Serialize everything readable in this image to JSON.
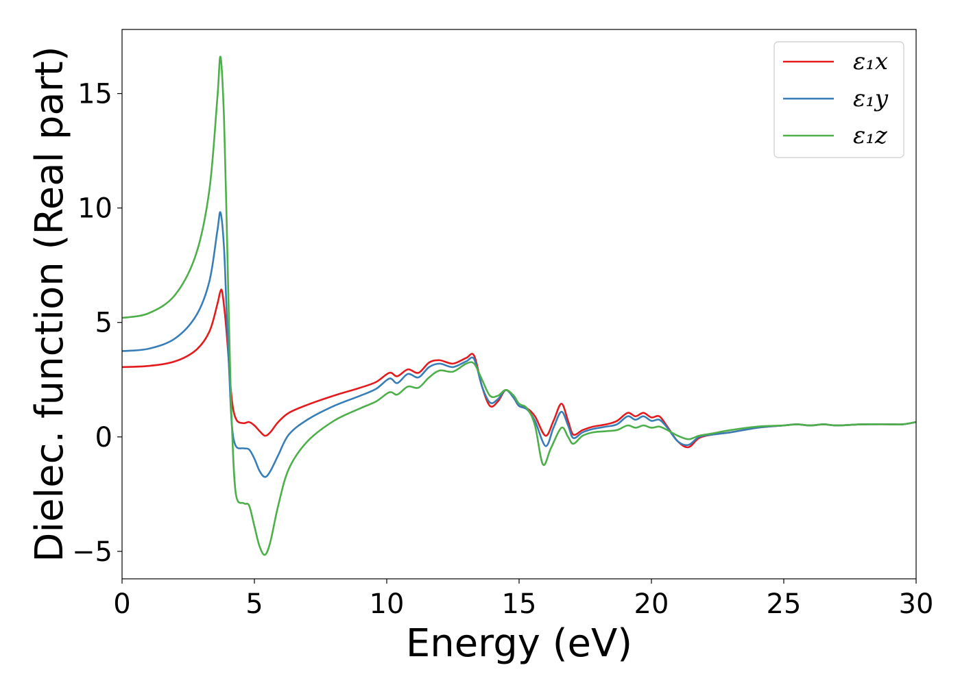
{
  "chart_data": {
    "type": "line",
    "title": "",
    "xlabel": "Energy (eV)",
    "ylabel": "Dielec. function (Real part)",
    "xlim": [
      0,
      30
    ],
    "ylim": [
      -6.2,
      17.8
    ],
    "xticks": [
      0,
      5,
      10,
      15,
      20,
      25,
      30
    ],
    "xtick_labels": [
      "0",
      "5",
      "10",
      "15",
      "20",
      "25",
      "30"
    ],
    "yticks": [
      -5,
      0,
      5,
      10,
      15
    ],
    "ytick_labels": [
      "−5",
      "0",
      "5",
      "10",
      "15"
    ],
    "grid": false,
    "legend_position": "top-right",
    "series": [
      {
        "name": "ε₁x",
        "color": "#e41a1c",
        "points": [
          [
            0,
            3.05
          ],
          [
            1,
            3.1
          ],
          [
            2,
            3.3
          ],
          [
            2.8,
            3.8
          ],
          [
            3.3,
            4.6
          ],
          [
            3.6,
            5.8
          ],
          [
            3.7,
            6.3
          ],
          [
            3.78,
            6.35
          ],
          [
            3.9,
            5.2
          ],
          [
            4.0,
            3.8
          ],
          [
            4.1,
            2.2
          ],
          [
            4.2,
            1.2
          ],
          [
            4.35,
            0.7
          ],
          [
            4.6,
            0.6
          ],
          [
            4.8,
            0.65
          ],
          [
            5.0,
            0.5
          ],
          [
            5.2,
            0.25
          ],
          [
            5.4,
            0.05
          ],
          [
            5.6,
            0.2
          ],
          [
            5.9,
            0.65
          ],
          [
            6.3,
            1.05
          ],
          [
            7,
            1.4
          ],
          [
            8,
            1.8
          ],
          [
            9,
            2.15
          ],
          [
            9.6,
            2.4
          ],
          [
            10.1,
            2.8
          ],
          [
            10.4,
            2.65
          ],
          [
            10.8,
            2.95
          ],
          [
            11.2,
            2.8
          ],
          [
            11.6,
            3.25
          ],
          [
            12.0,
            3.35
          ],
          [
            12.5,
            3.2
          ],
          [
            13.0,
            3.45
          ],
          [
            13.3,
            3.55
          ],
          [
            13.6,
            2.2
          ],
          [
            13.9,
            1.35
          ],
          [
            14.2,
            1.55
          ],
          [
            14.5,
            2.05
          ],
          [
            14.8,
            1.7
          ],
          [
            15.0,
            1.35
          ],
          [
            15.3,
            1.25
          ],
          [
            15.6,
            0.9
          ],
          [
            16.0,
            0.05
          ],
          [
            16.3,
            0.7
          ],
          [
            16.6,
            1.45
          ],
          [
            16.85,
            0.7
          ],
          [
            17.05,
            0.1
          ],
          [
            17.4,
            0.3
          ],
          [
            17.8,
            0.45
          ],
          [
            18.3,
            0.55
          ],
          [
            18.7,
            0.7
          ],
          [
            19.1,
            1.05
          ],
          [
            19.4,
            0.9
          ],
          [
            19.7,
            1.05
          ],
          [
            20.0,
            0.85
          ],
          [
            20.3,
            0.9
          ],
          [
            20.6,
            0.45
          ],
          [
            21.0,
            -0.2
          ],
          [
            21.4,
            -0.45
          ],
          [
            21.8,
            -0.05
          ],
          [
            22.3,
            0.1
          ],
          [
            23,
            0.2
          ],
          [
            24,
            0.4
          ],
          [
            25,
            0.5
          ],
          [
            25.5,
            0.55
          ],
          [
            26,
            0.5
          ],
          [
            26.5,
            0.55
          ],
          [
            27,
            0.5
          ],
          [
            28,
            0.55
          ],
          [
            29,
            0.55
          ],
          [
            29.5,
            0.55
          ],
          [
            30,
            0.65
          ]
        ]
      },
      {
        "name": "ε₁y",
        "color": "#377eb8",
        "points": [
          [
            0,
            3.75
          ],
          [
            1,
            3.85
          ],
          [
            2,
            4.3
          ],
          [
            2.8,
            5.3
          ],
          [
            3.3,
            6.8
          ],
          [
            3.6,
            9.0
          ],
          [
            3.72,
            9.8
          ],
          [
            3.85,
            8.3
          ],
          [
            3.95,
            5.5
          ],
          [
            4.05,
            2.8
          ],
          [
            4.15,
            0.5
          ],
          [
            4.3,
            -0.4
          ],
          [
            4.6,
            -0.5
          ],
          [
            4.8,
            -0.55
          ],
          [
            5.0,
            -0.95
          ],
          [
            5.2,
            -1.5
          ],
          [
            5.4,
            -1.75
          ],
          [
            5.6,
            -1.5
          ],
          [
            5.9,
            -0.8
          ],
          [
            6.3,
            0.1
          ],
          [
            7,
            0.75
          ],
          [
            8,
            1.35
          ],
          [
            9,
            1.8
          ],
          [
            9.6,
            2.1
          ],
          [
            10.1,
            2.55
          ],
          [
            10.4,
            2.35
          ],
          [
            10.8,
            2.75
          ],
          [
            11.2,
            2.6
          ],
          [
            11.6,
            3.05
          ],
          [
            12.0,
            3.2
          ],
          [
            12.5,
            3.05
          ],
          [
            13.0,
            3.3
          ],
          [
            13.3,
            3.4
          ],
          [
            13.6,
            2.2
          ],
          [
            13.9,
            1.5
          ],
          [
            14.2,
            1.65
          ],
          [
            14.5,
            2.05
          ],
          [
            14.8,
            1.7
          ],
          [
            15.0,
            1.35
          ],
          [
            15.3,
            1.2
          ],
          [
            15.6,
            0.7
          ],
          [
            16.0,
            -0.4
          ],
          [
            16.3,
            0.4
          ],
          [
            16.6,
            1.1
          ],
          [
            16.85,
            0.5
          ],
          [
            17.05,
            -0.05
          ],
          [
            17.4,
            0.2
          ],
          [
            17.8,
            0.35
          ],
          [
            18.3,
            0.45
          ],
          [
            18.7,
            0.55
          ],
          [
            19.1,
            0.9
          ],
          [
            19.4,
            0.75
          ],
          [
            19.7,
            0.9
          ],
          [
            20.0,
            0.7
          ],
          [
            20.3,
            0.75
          ],
          [
            20.6,
            0.4
          ],
          [
            21.0,
            -0.2
          ],
          [
            21.4,
            -0.35
          ],
          [
            21.8,
            0
          ],
          [
            22.3,
            0.1
          ],
          [
            23,
            0.2
          ],
          [
            24,
            0.4
          ],
          [
            25,
            0.5
          ],
          [
            25.5,
            0.55
          ],
          [
            26,
            0.5
          ],
          [
            26.5,
            0.55
          ],
          [
            27,
            0.5
          ],
          [
            28,
            0.55
          ],
          [
            29,
            0.55
          ],
          [
            29.5,
            0.55
          ],
          [
            30,
            0.65
          ]
        ]
      },
      {
        "name": "ε₁z",
        "color": "#4daf4a",
        "points": [
          [
            0,
            5.2
          ],
          [
            1,
            5.4
          ],
          [
            2,
            6.2
          ],
          [
            2.8,
            8.0
          ],
          [
            3.3,
            10.8
          ],
          [
            3.6,
            14.8
          ],
          [
            3.72,
            16.6
          ],
          [
            3.85,
            14.0
          ],
          [
            3.95,
            9.5
          ],
          [
            4.05,
            4.5
          ],
          [
            4.15,
            0.5
          ],
          [
            4.3,
            -2.5
          ],
          [
            4.6,
            -2.9
          ],
          [
            4.8,
            -3.0
          ],
          [
            5.0,
            -3.9
          ],
          [
            5.2,
            -4.8
          ],
          [
            5.4,
            -5.15
          ],
          [
            5.6,
            -4.6
          ],
          [
            5.9,
            -3.0
          ],
          [
            6.3,
            -1.4
          ],
          [
            7,
            -0.2
          ],
          [
            8,
            0.7
          ],
          [
            9,
            1.25
          ],
          [
            9.6,
            1.55
          ],
          [
            10.1,
            1.95
          ],
          [
            10.4,
            1.85
          ],
          [
            10.8,
            2.2
          ],
          [
            11.2,
            2.15
          ],
          [
            11.6,
            2.6
          ],
          [
            12.0,
            2.9
          ],
          [
            12.5,
            2.85
          ],
          [
            13.0,
            3.2
          ],
          [
            13.3,
            3.2
          ],
          [
            13.6,
            2.5
          ],
          [
            13.9,
            1.8
          ],
          [
            14.2,
            1.8
          ],
          [
            14.5,
            2.05
          ],
          [
            14.8,
            1.8
          ],
          [
            15.0,
            1.45
          ],
          [
            15.3,
            1.25
          ],
          [
            15.6,
            0.5
          ],
          [
            15.9,
            -1.2
          ],
          [
            16.2,
            -0.5
          ],
          [
            16.6,
            0.4
          ],
          [
            16.85,
            0
          ],
          [
            17.05,
            -0.3
          ],
          [
            17.4,
            0.05
          ],
          [
            17.8,
            0.2
          ],
          [
            18.3,
            0.25
          ],
          [
            18.7,
            0.3
          ],
          [
            19.1,
            0.5
          ],
          [
            19.4,
            0.4
          ],
          [
            19.7,
            0.5
          ],
          [
            20.0,
            0.4
          ],
          [
            20.3,
            0.45
          ],
          [
            20.6,
            0.3
          ],
          [
            21.0,
            0.05
          ],
          [
            21.4,
            -0.1
          ],
          [
            21.8,
            0.05
          ],
          [
            22.3,
            0.15
          ],
          [
            23,
            0.3
          ],
          [
            24,
            0.45
          ],
          [
            25,
            0.5
          ],
          [
            25.5,
            0.55
          ],
          [
            26,
            0.5
          ],
          [
            26.5,
            0.55
          ],
          [
            27,
            0.5
          ],
          [
            28,
            0.55
          ],
          [
            29,
            0.55
          ],
          [
            29.5,
            0.55
          ],
          [
            30,
            0.65
          ]
        ]
      }
    ]
  }
}
